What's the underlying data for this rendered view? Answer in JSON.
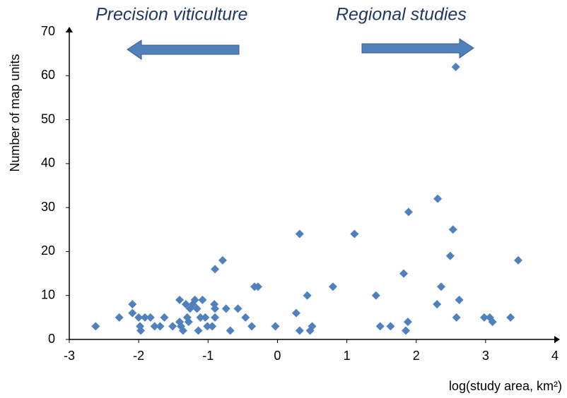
{
  "chart_data": {
    "type": "scatter",
    "annotations": [
      "Precision viticulture",
      "Regional studies"
    ],
    "x_label": "log(study area, km²)",
    "y_label": "Number of map units",
    "series": [
      {
        "color": "#4f81bd",
        "x": [
          -2.62,
          -2.28,
          -2.09,
          -2.09,
          -2.0,
          -1.98,
          -1.97,
          -1.91,
          -1.83,
          -1.77,
          -1.69,
          -1.63,
          -1.51,
          -1.41,
          -1.41,
          -1.39,
          -1.36,
          -1.32,
          -1.3,
          -1.28,
          -1.26,
          -1.22,
          -1.19,
          -1.16,
          -1.14,
          -1.11,
          -1.08,
          -1.04,
          -1.01,
          -0.94,
          -0.9,
          -0.91,
          -0.9,
          -0.9,
          -0.79,
          -0.74,
          -0.68,
          -0.57,
          -0.46,
          -0.37,
          -0.33,
          -0.28,
          -0.03,
          0.27,
          0.32,
          0.32,
          0.43,
          0.47,
          0.5,
          0.8,
          1.11,
          1.42,
          1.48,
          1.63,
          1.82,
          1.85,
          1.88,
          1.89,
          2.3,
          2.31,
          2.36,
          2.49,
          2.53,
          2.57,
          2.58,
          2.62,
          2.98,
          3.06,
          3.1,
          3.36,
          3.47
        ],
        "values": [
          3,
          5,
          8,
          6,
          5,
          3,
          2,
          5,
          5,
          3,
          3,
          5,
          3,
          9,
          4,
          3,
          2,
          8,
          5,
          4,
          7,
          8,
          9,
          7,
          2,
          5,
          9,
          5,
          3,
          3,
          16,
          8,
          7,
          5,
          18,
          7,
          2,
          7,
          5,
          3,
          12,
          12,
          3,
          6,
          24,
          2,
          10,
          2,
          3,
          12,
          24,
          10,
          3,
          3,
          15,
          2,
          4,
          29,
          8,
          32,
          12,
          19,
          25,
          62,
          5,
          9,
          5,
          5,
          4,
          5,
          18
        ]
      }
    ],
    "xlim": [
      -3,
      4
    ],
    "xticks": [
      -3,
      -2,
      -1,
      0,
      1,
      2,
      3,
      4
    ],
    "ylim": [
      0,
      70
    ],
    "yticks": [
      0,
      10,
      20,
      30,
      40,
      50,
      60,
      70
    ]
  }
}
